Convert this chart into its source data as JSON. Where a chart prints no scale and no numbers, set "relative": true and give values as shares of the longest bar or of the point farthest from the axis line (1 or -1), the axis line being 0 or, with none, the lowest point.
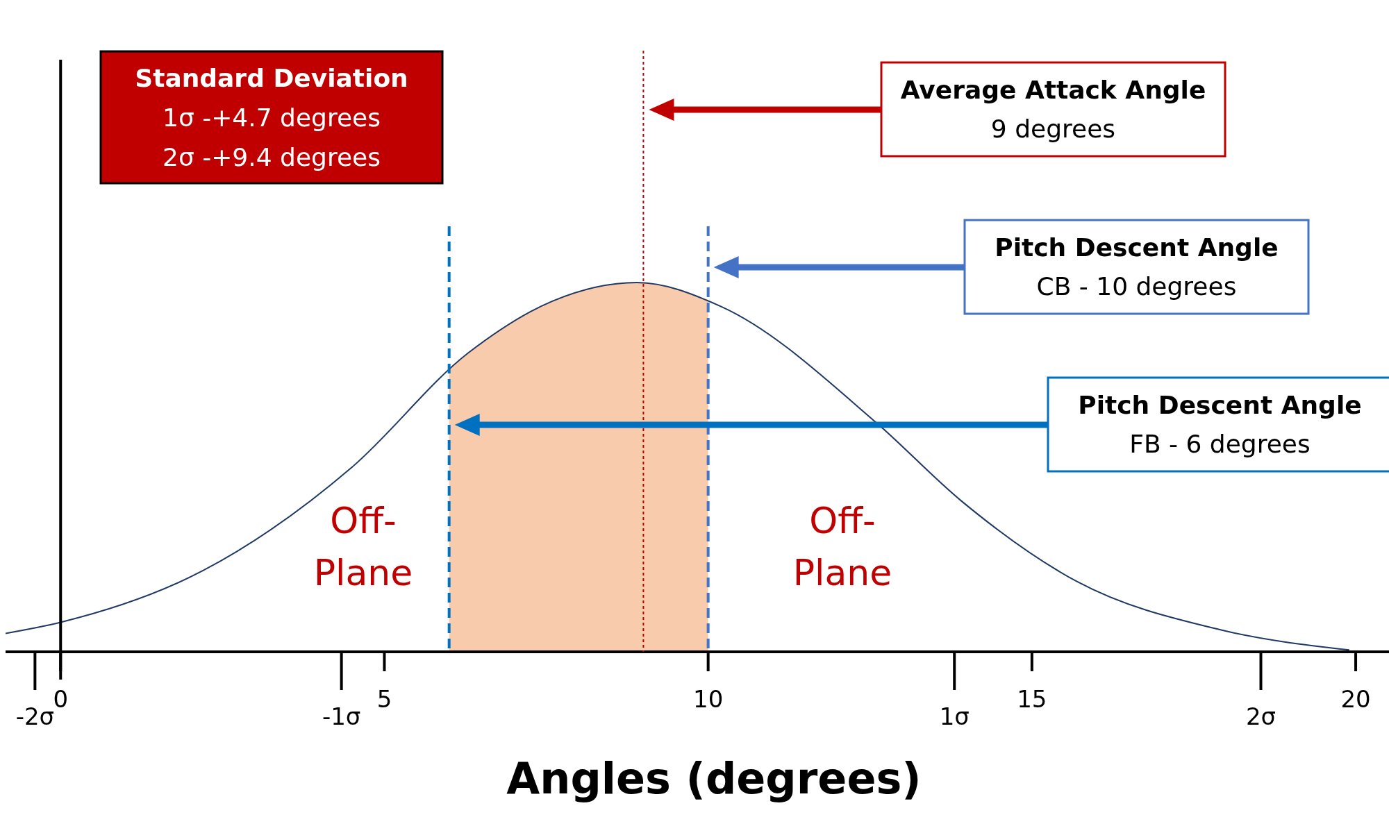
{
  "chart_data": {
    "type": "line",
    "relative": true,
    "xlabel": "Angles (degrees)",
    "x": [
      -0.85,
      0,
      2.2,
      4.5,
      6.3,
      7.6,
      8.9,
      10.2,
      12.6,
      13.9,
      15.7,
      17.9,
      19.9
    ],
    "series": [
      {
        "color": "#1f3864",
        "values": [
          0.05,
          0.08,
          0.22,
          0.5,
          0.81,
          0.95,
          1,
          0.935,
          0.62,
          0.41,
          0.19,
          0.06,
          0.005
        ]
      }
    ],
    "xlim": [
      -0.85,
      20.6
    ],
    "xticks": [
      0,
      5,
      10,
      15,
      20
    ],
    "x2lim": [
      -2.096,
      2.4362
    ],
    "x2ticks": [
      {
        "value": -2,
        "label": "-2σ"
      },
      {
        "value": -1,
        "label": "-1σ"
      },
      {
        "value": 1,
        "label": "1σ"
      },
      {
        "value": 2,
        "label": "2σ"
      }
    ],
    "bands": [
      {
        "axis": "x",
        "from": 6,
        "to": 10,
        "color": "#f8cbad"
      }
    ],
    "ref_lines": [
      {
        "axis": "x",
        "value": 9,
        "color": "#c00000",
        "line_style": "dotted"
      },
      {
        "axis": "x",
        "value": 10,
        "color": "#4472c4",
        "line_style": "dashed"
      },
      {
        "axis": "x",
        "value": 6,
        "color": "#0070c0",
        "line_style": "dashed"
      }
    ],
    "annotations": [
      "Standard Deviation\n1σ -+4.7 degrees\n2σ -+9.4 degrees",
      "Off-\nPlane",
      "Off-\nPlane",
      "Average Attack Angle\n9 degrees",
      "Pitch Descent Angle\nCB - 10 degrees",
      "Pitch Descent Angle\nFB - 6 degrees"
    ]
  }
}
